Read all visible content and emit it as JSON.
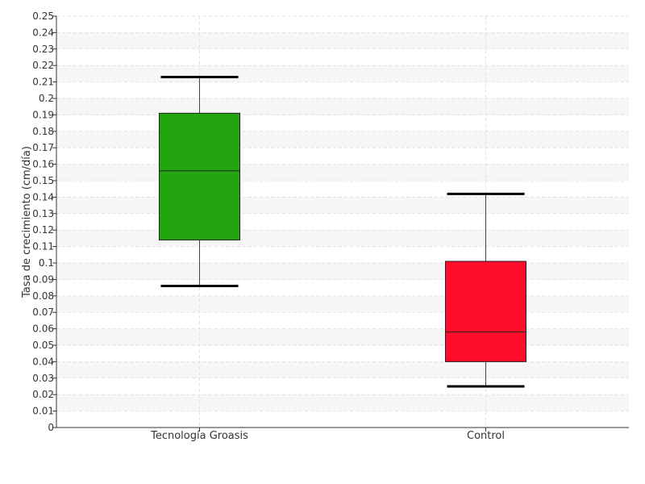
{
  "chart_data": {
    "type": "boxplot",
    "title": "",
    "xlabel": "",
    "ylabel": "Tasa de crecimiento (cm/día)",
    "ylim": [
      0,
      0.25
    ],
    "y_ticks": [
      "0",
      "0.01",
      "0.02",
      "0.03",
      "0.04",
      "0.05",
      "0.06",
      "0.07",
      "0.08",
      "0.09",
      "0.1",
      "0.11",
      "0.12",
      "0.13",
      "0.14",
      "0.15",
      "0.16",
      "0.17",
      "0.18",
      "0.19",
      "0.2",
      "0.21",
      "0.22",
      "0.23",
      "0.24",
      "0.25"
    ],
    "grid": true,
    "categories": [
      "Tecnología Groasis",
      "Control"
    ],
    "boxes": [
      {
        "category": "Tecnología Groasis",
        "min": 0.086,
        "q1": 0.114,
        "median": 0.156,
        "q3": 0.191,
        "max": 0.213,
        "color": "#22a50e"
      },
      {
        "category": "Control",
        "min": 0.025,
        "q1": 0.04,
        "median": 0.058,
        "q3": 0.101,
        "max": 0.142,
        "color": "#ff0d2a"
      }
    ]
  }
}
